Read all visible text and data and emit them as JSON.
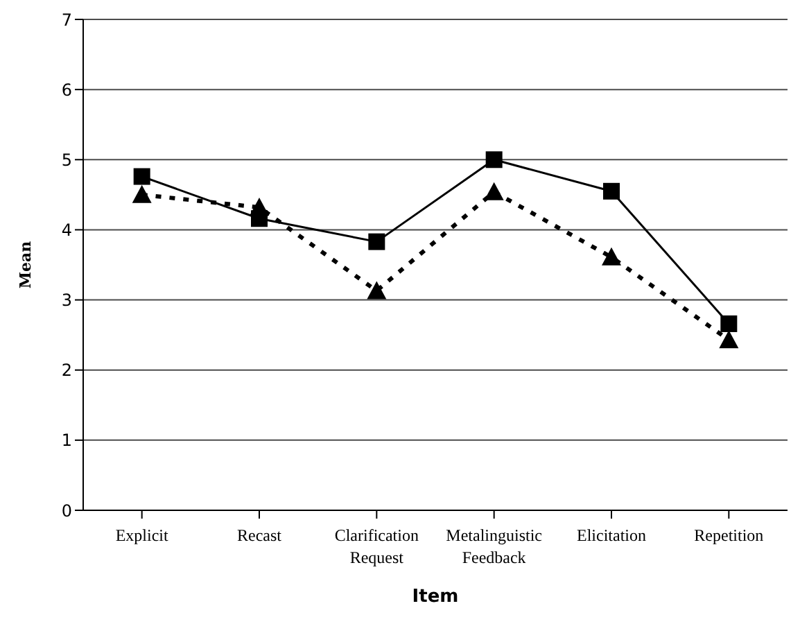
{
  "chart_data": {
    "type": "line",
    "xlabel": "Item",
    "ylabel": "Mean",
    "categories": [
      "Explicit",
      "Recast",
      "Clarification Request",
      "Metalinguistic Feedback",
      "Elicitation",
      "Repetition"
    ],
    "series": [
      {
        "color": "#000000",
        "marker": "square",
        "line_style": "solid",
        "values": [
          4.76,
          4.16,
          3.83,
          5.0,
          4.55,
          2.66
        ]
      },
      {
        "color": "#000000",
        "marker": "triangle",
        "line_style": "dotted",
        "values": [
          4.5,
          4.32,
          3.13,
          4.54,
          3.61,
          2.43
        ]
      }
    ],
    "ylim": [
      0,
      7
    ],
    "yticks": [
      0,
      1,
      2,
      3,
      4,
      5,
      6,
      7
    ],
    "grid": "y",
    "legend": false
  }
}
